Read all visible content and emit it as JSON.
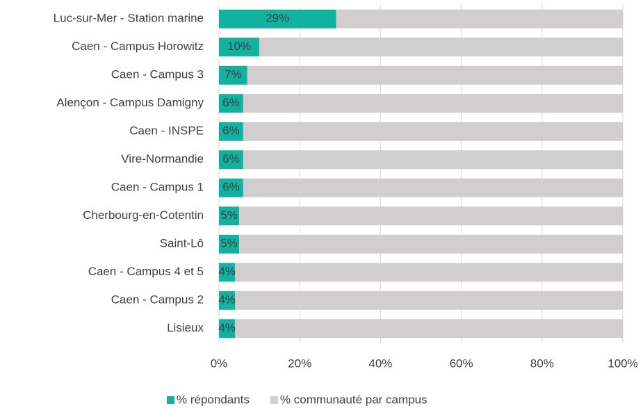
{
  "chart_data": {
    "type": "stacked_bar_horizontal",
    "categories": [
      "Luc-sur-Mer - Station marine",
      "Caen - Campus Horowitz",
      "Caen - Campus 3",
      "Alençon - Campus Damigny",
      "Caen - INSPE",
      "Vire-Normandie",
      "Caen - Campus 1",
      "Cherbourg-en-Cotentin",
      "Saint-Lô",
      "Caen - Campus 4 et 5",
      "Caen - Campus 2",
      "Lisieux"
    ],
    "series": [
      {
        "name": "% répondants",
        "color": "#12b1a0",
        "values": [
          29,
          10,
          7,
          6,
          6,
          6,
          6,
          5,
          5,
          4,
          4,
          4
        ],
        "value_labels": [
          "29%",
          "10%",
          "7%",
          "6%",
          "6%",
          "6%",
          "6%",
          "5%",
          "5%",
          "4%",
          "4%",
          "4%"
        ]
      },
      {
        "name": "% communauté par campus",
        "color": "#d0cece",
        "values": [
          71,
          90,
          93,
          94,
          94,
          94,
          94,
          95,
          95,
          96,
          96,
          96
        ]
      }
    ],
    "xlim": [
      0,
      100
    ],
    "xticks": [
      {
        "value": 0,
        "label": "0%"
      },
      {
        "value": 20,
        "label": "20%"
      },
      {
        "value": 40,
        "label": "40%"
      },
      {
        "value": 60,
        "label": "60%"
      },
      {
        "value": 80,
        "label": "80%"
      },
      {
        "value": 100,
        "label": "100%"
      }
    ],
    "grid": true,
    "legend": "bottom"
  }
}
